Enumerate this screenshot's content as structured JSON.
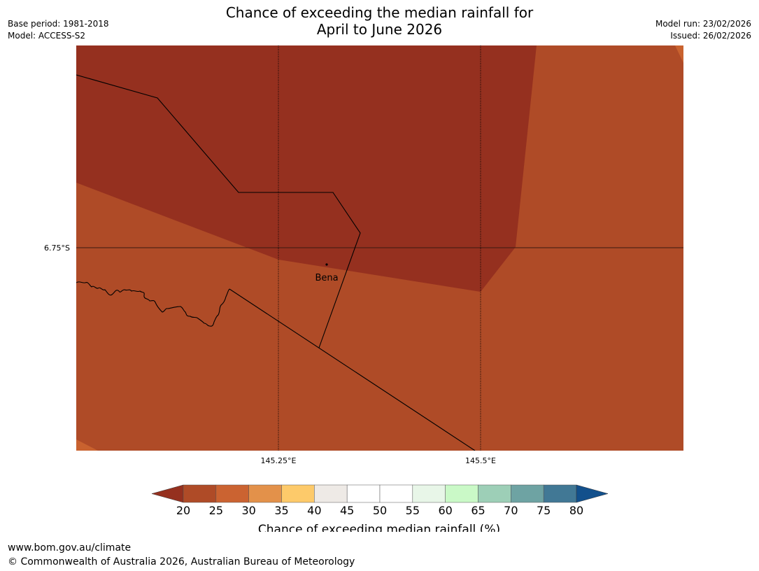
{
  "header": {
    "title_line1": "Chance of exceeding the median rainfall for",
    "title_line2": "April to June 2026",
    "base_period": "Base period: 1981-2018",
    "model": "Model: ACCESS-S2",
    "model_run": "Model run: 23/02/2026",
    "issued": "Issued: 26/02/2026"
  },
  "map": {
    "lat_label": "6.75°S",
    "lon_labels": [
      "145.25°E",
      "145.5°E"
    ],
    "place_label": "Bena",
    "colors": {
      "dark_zone": "#95301f",
      "main_zone": "#af4b27",
      "edge_zone": "#c9622f",
      "border_line": "#000000"
    }
  },
  "legend": {
    "ticks": [
      "20",
      "25",
      "30",
      "35",
      "40",
      "45",
      "50",
      "55",
      "60",
      "65",
      "70",
      "75",
      "80"
    ],
    "colors": [
      "#af4b27",
      "#cb6331",
      "#e3914a",
      "#fdca6a",
      "#eeeae6",
      "#ffffff",
      "#ffffff",
      "#e8f6e8",
      "#caf9c7",
      "#9dcfb7",
      "#6ea3a3",
      "#417895"
    ],
    "low_arrow_color": "#95301f",
    "high_arrow_color": "#12508c",
    "label": "Chance of exceeding median rainfall (%)"
  },
  "footer": {
    "url": "www.bom.gov.au/climate",
    "copyright": "© Commonwealth of Australia 2026, Australian Bureau of Meteorology"
  }
}
